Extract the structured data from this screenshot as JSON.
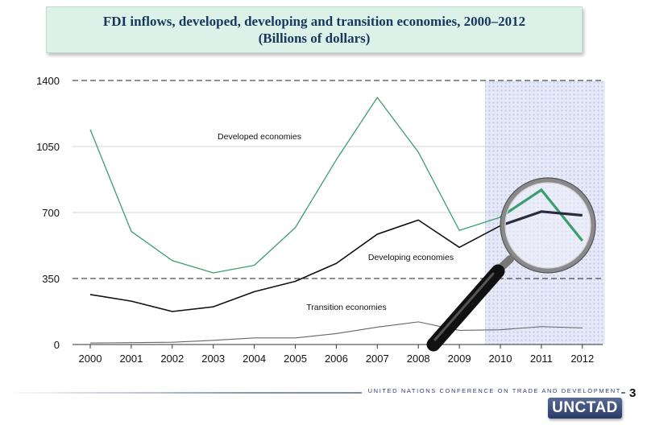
{
  "title_line1": "FDI inflows, developed, developing and transition economies, 2000–2012",
  "title_line2": "(Billions of dollars)",
  "footer": {
    "organization": "UNITED NATIONS CONFERENCE ON TRADE AND DEVELOPMENT",
    "logo_text": "UNCTAD",
    "page_number": "3"
  },
  "magnifier_icon": "magnifying-glass-icon",
  "chart_data": {
    "type": "line",
    "title": "FDI inflows, developed, developing and transition economies, 2000–2012 (Billions of dollars)",
    "x": [
      "2000",
      "2001",
      "2002",
      "2003",
      "2004",
      "2005",
      "2006",
      "2007",
      "2008",
      "2009",
      "2010",
      "2011",
      "2012"
    ],
    "ylim": [
      0,
      1400
    ],
    "yticks": [
      0,
      350,
      700,
      1050,
      1400
    ],
    "highlight_range": [
      "2010",
      "2012"
    ],
    "grid": "dashed lines at 350 and 1400; light lines at 700 and 1050",
    "series": [
      {
        "name": "Developed economies",
        "color": "#3a9e6d",
        "values": [
          1140,
          600,
          445,
          380,
          420,
          620,
          980,
          1310,
          1020,
          605,
          675,
          820,
          550
        ]
      },
      {
        "name": "Developing economies",
        "color": "#111111",
        "values": [
          265,
          230,
          175,
          200,
          280,
          335,
          430,
          585,
          660,
          515,
          630,
          705,
          685
        ]
      },
      {
        "name": "Transition economies",
        "color": "#666666",
        "values": [
          8,
          10,
          12,
          22,
          35,
          35,
          58,
          92,
          120,
          75,
          78,
          95,
          88
        ]
      }
    ]
  }
}
